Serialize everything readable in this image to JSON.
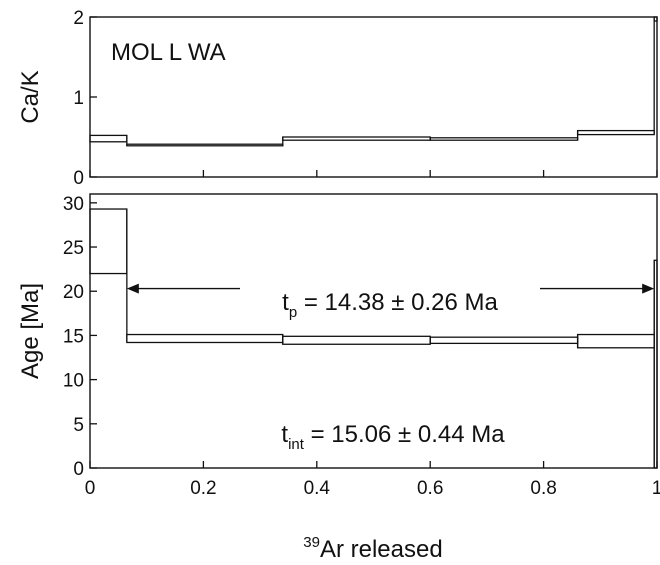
{
  "chart_data": [
    {
      "type": "line",
      "panel": "top",
      "step_spectrum": true,
      "ylabel": "Ca/K",
      "annotation": "MOL L WA",
      "xlim": [
        0,
        1
      ],
      "ylim": [
        0,
        2
      ],
      "yticks": [
        "0",
        "1",
        "2"
      ],
      "steps": [
        {
          "x0": 0.0,
          "x1": 0.065,
          "y_lo": 0.44,
          "y_hi": 0.52
        },
        {
          "x0": 0.065,
          "x1": 0.34,
          "y_lo": 0.39,
          "y_hi": 0.41
        },
        {
          "x0": 0.34,
          "x1": 0.6,
          "y_lo": 0.46,
          "y_hi": 0.5
        },
        {
          "x0": 0.6,
          "x1": 0.86,
          "y_lo": 0.46,
          "y_hi": 0.49
        },
        {
          "x0": 0.86,
          "x1": 0.995,
          "y_lo": 0.53,
          "y_hi": 0.58
        },
        {
          "x0": 0.995,
          "x1": 1.0,
          "y_lo": 1.95,
          "y_hi": 2.0
        }
      ]
    },
    {
      "type": "line",
      "panel": "bottom",
      "step_spectrum": true,
      "xlabel_sup": "39",
      "xlabel_main": "Ar released",
      "ylabel": "Age [Ma]",
      "xlim": [
        0,
        1
      ],
      "ylim": [
        0,
        31
      ],
      "xticks": [
        "0",
        "0.2",
        "0.4",
        "0.6",
        "0.8",
        "1"
      ],
      "yticks": [
        "0",
        "5",
        "10",
        "15",
        "20",
        "25",
        "30"
      ],
      "steps": [
        {
          "x0": 0.0,
          "x1": 0.065,
          "y_lo": 22.0,
          "y_hi": 29.3
        },
        {
          "x0": 0.065,
          "x1": 0.34,
          "y_lo": 14.2,
          "y_hi": 15.1
        },
        {
          "x0": 0.34,
          "x1": 0.6,
          "y_lo": 14.0,
          "y_hi": 14.9
        },
        {
          "x0": 0.6,
          "x1": 0.86,
          "y_lo": 14.1,
          "y_hi": 14.8
        },
        {
          "x0": 0.86,
          "x1": 0.995,
          "y_lo": 13.6,
          "y_hi": 15.1
        },
        {
          "x0": 0.995,
          "x1": 1.0,
          "y_lo": 0.0,
          "y_hi": 23.5
        }
      ],
      "plateau": {
        "x_start": 0.065,
        "x_end": 0.995,
        "y": 20.3,
        "label_main": "t",
        "label_sub": "p",
        "label_value": " = 14.38 ± 0.26 Ma"
      },
      "integrated": {
        "label_main": "t",
        "label_sub": "int",
        "label_value": " = 15.06 ± 0.44 Ma"
      }
    }
  ]
}
